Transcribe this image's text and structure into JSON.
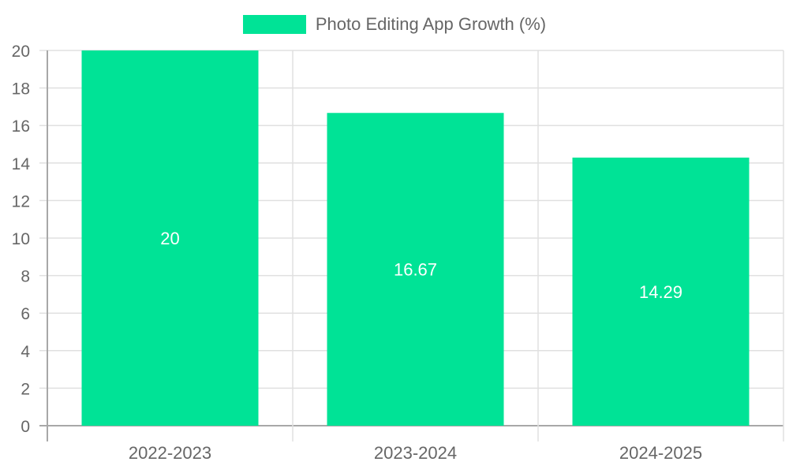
{
  "chart_data": {
    "type": "bar",
    "title": "",
    "categories": [
      "2022-2023",
      "2023-2024",
      "2024-2025"
    ],
    "series": [
      {
        "name": "Photo Editing App Growth (%)",
        "values": [
          20,
          16.67,
          14.29
        ],
        "color": "#00e396"
      }
    ],
    "data_labels": [
      "20",
      "16.67",
      "14.29"
    ],
    "xlabel": "",
    "ylabel": "",
    "ylim": [
      0,
      20
    ],
    "yticks": [
      0,
      2,
      4,
      6,
      8,
      10,
      12,
      14,
      16,
      18,
      20
    ],
    "grid": true,
    "legend_position": "top"
  },
  "legend": {
    "label": "Photo Editing App Growth (%)",
    "color": "#00e396"
  },
  "colors": {
    "bar": "#00e396",
    "grid": "#e0e0e0",
    "axis": "#a8a8a8",
    "text": "#666666",
    "label": "#ffffff"
  }
}
